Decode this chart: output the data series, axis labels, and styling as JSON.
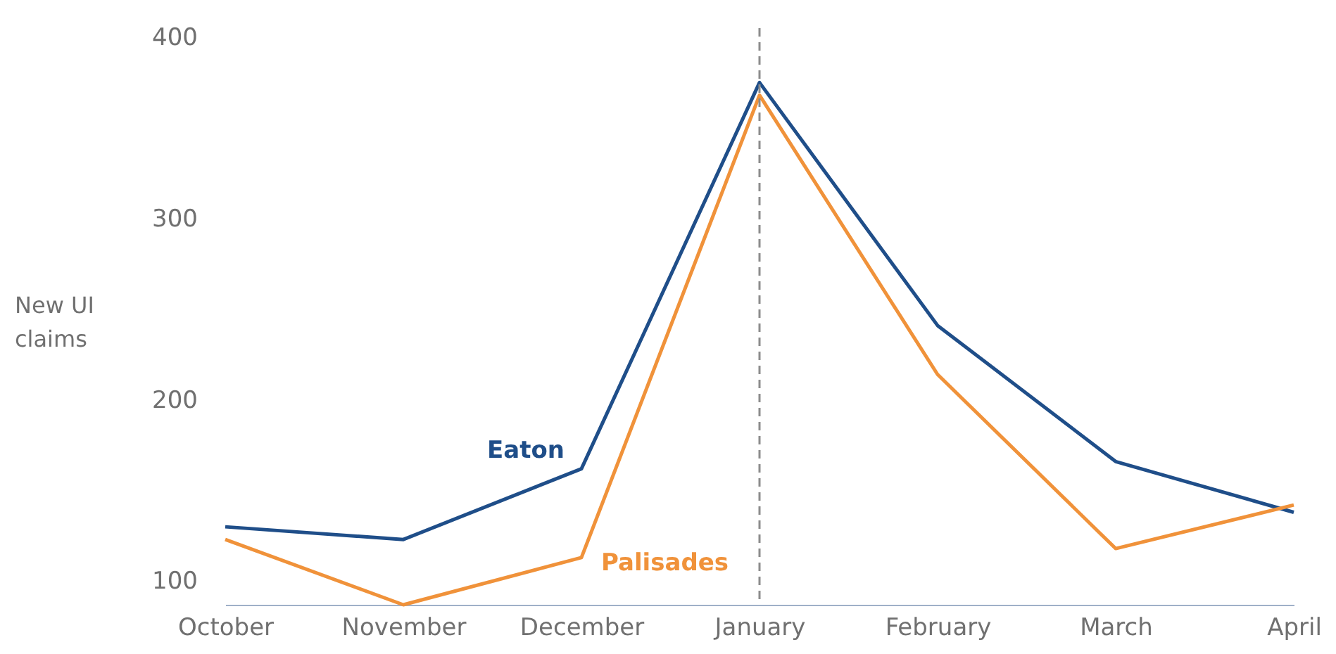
{
  "chart_data": {
    "type": "line",
    "ylabel": "New UI claims",
    "categories": [
      "October",
      "November",
      "December",
      "January",
      "February",
      "March",
      "April"
    ],
    "series": [
      {
        "name": "Eaton",
        "color": "#1f4e89",
        "values": [
          130,
          123,
          162,
          375,
          241,
          166,
          138
        ]
      },
      {
        "name": "Palisades",
        "color": "#f0923a",
        "values": [
          123,
          87,
          113,
          368,
          214,
          118,
          142
        ]
      }
    ],
    "ylim": [
      87,
      405
    ],
    "yticks": [
      100,
      200,
      300,
      400
    ],
    "grid": false,
    "marker": "none",
    "line_style": "solid",
    "ref_lines": [
      {
        "axis": "x",
        "value": "January",
        "color": "#8c8c8c",
        "line_style": "dashed"
      }
    ]
  }
}
